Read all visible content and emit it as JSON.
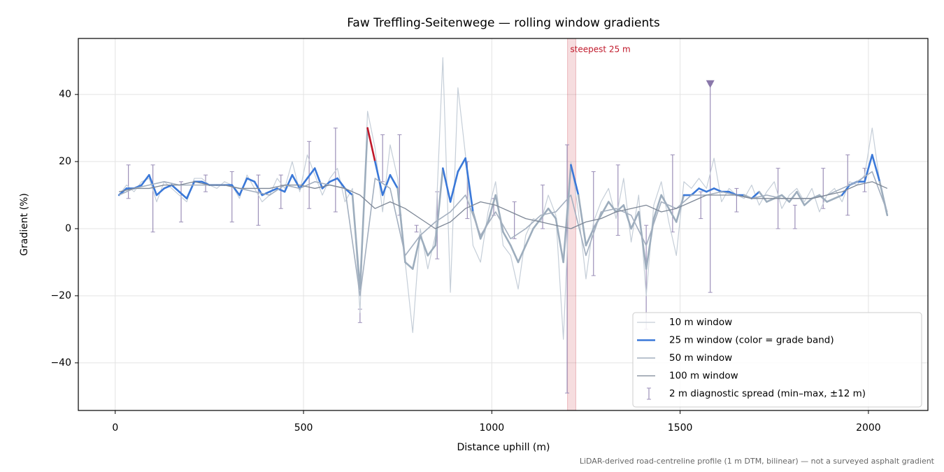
{
  "chart_data": {
    "type": "line",
    "title": "Faw Treffling-Seitenwege — rolling window gradients",
    "xlabel": "Distance uphill (m)",
    "ylabel": "Gradient (%)",
    "footnote": "LiDAR-derived road-centreline profile (1 m DTM, bilinear) — not a surveyed asphalt gradient",
    "xlim": [
      -98,
      2158
    ],
    "ylim": [
      -54.2,
      56.7
    ],
    "xticks": [
      0,
      500,
      1000,
      1500,
      2000
    ],
    "yticks": [
      {
        "value": -40,
        "label": "−40"
      },
      {
        "value": -20,
        "label": "−20"
      },
      0,
      20,
      40
    ],
    "grid": true,
    "legend": "lower right",
    "series": [
      {
        "name": "10 m window",
        "color": "#c5ced8",
        "linewidth": 1.2,
        "x": [
          10,
          30,
          50,
          70,
          90,
          110,
          130,
          150,
          170,
          190,
          210,
          230,
          250,
          270,
          290,
          310,
          330,
          350,
          370,
          390,
          410,
          430,
          450,
          470,
          490,
          510,
          530,
          550,
          570,
          590,
          610,
          630,
          650,
          670,
          690,
          710,
          730,
          750,
          770,
          790,
          810,
          830,
          850,
          870,
          890,
          910,
          930,
          950,
          970,
          990,
          1010,
          1030,
          1050,
          1070,
          1090,
          1110,
          1130,
          1150,
          1170,
          1190,
          1210,
          1230,
          1250,
          1270,
          1290,
          1310,
          1330,
          1350,
          1370,
          1390,
          1410,
          1430,
          1450,
          1470,
          1490,
          1510,
          1530,
          1550,
          1570,
          1590,
          1610,
          1630,
          1650,
          1670,
          1690,
          1710,
          1730,
          1750,
          1770,
          1790,
          1810,
          1830,
          1850,
          1870,
          1890,
          1910,
          1930,
          1950,
          1970,
          1990,
          2010,
          2030,
          2050
        ],
        "values": [
          10,
          13,
          11,
          14,
          15,
          8,
          14,
          12,
          10,
          8,
          15,
          15,
          13,
          12,
          14,
          13,
          9,
          16,
          12,
          8,
          10,
          15,
          12,
          20,
          11,
          22,
          16,
          10,
          15,
          18,
          8,
          12,
          -25,
          35,
          24,
          5,
          25,
          15,
          -10,
          -31,
          0,
          -12,
          -2,
          51,
          -19,
          42,
          22,
          -5,
          -10,
          5,
          14,
          -5,
          -8,
          -18,
          -2,
          3,
          2,
          10,
          4,
          -33,
          20,
          5,
          -15,
          2,
          8,
          12,
          3,
          15,
          -4,
          10,
          -20,
          7,
          14,
          2,
          -8,
          14,
          12,
          15,
          12,
          21,
          8,
          12,
          10,
          9,
          13,
          7,
          11,
          14,
          6,
          10,
          12,
          8,
          12,
          5,
          10,
          12,
          8,
          14,
          13,
          16,
          30,
          14,
          5
        ]
      },
      {
        "name": "25 m window (color = grade band)",
        "color": "#3a78d8",
        "linewidth": 2.6,
        "color_by": "grade_bands",
        "x": [
          10,
          30,
          50,
          70,
          90,
          110,
          130,
          150,
          170,
          190,
          210,
          230,
          250,
          270,
          290,
          310,
          330,
          350,
          370,
          390,
          410,
          430,
          450,
          470,
          490,
          510,
          530,
          550,
          570,
          590,
          610,
          630,
          650,
          670,
          690,
          710,
          730,
          750,
          770,
          790,
          810,
          830,
          850,
          870,
          890,
          910,
          930,
          950,
          970,
          990,
          1010,
          1030,
          1050,
          1070,
          1090,
          1110,
          1130,
          1150,
          1170,
          1190,
          1210,
          1230,
          1250,
          1270,
          1290,
          1310,
          1330,
          1350,
          1370,
          1390,
          1410,
          1430,
          1450,
          1470,
          1490,
          1510,
          1530,
          1550,
          1570,
          1590,
          1610,
          1630,
          1650,
          1670,
          1690,
          1710,
          1730,
          1750,
          1770,
          1790,
          1810,
          1830,
          1850,
          1870,
          1890,
          1910,
          1930,
          1950,
          1970,
          1990,
          2010,
          2030,
          2050
        ],
        "values": [
          10,
          12,
          12,
          13,
          16,
          10,
          12,
          13,
          11,
          9,
          14,
          14,
          13,
          13,
          13,
          13,
          10,
          15,
          14,
          10,
          11,
          12,
          11,
          16,
          12,
          15,
          18,
          12,
          14,
          15,
          12,
          10,
          -18,
          30,
          20,
          10,
          16,
          12,
          -10,
          -12,
          -2,
          -8,
          -5,
          18,
          8,
          17,
          21,
          5,
          -3,
          2,
          10,
          -1,
          -5,
          -10,
          -5,
          0,
          3,
          6,
          3,
          -10,
          19,
          10,
          -5,
          0,
          4,
          8,
          5,
          7,
          0,
          5,
          -12,
          3,
          10,
          6,
          2,
          10,
          10,
          12,
          11,
          12,
          11,
          11,
          10,
          10,
          9,
          11,
          8,
          9,
          10,
          8,
          11,
          7,
          9,
          10,
          8,
          9,
          10,
          13,
          14,
          14,
          22,
          14,
          4
        ]
      },
      {
        "name": "50 m window",
        "color": "#a3afbf",
        "linewidth": 1.6,
        "x": [
          10,
          50,
          90,
          130,
          170,
          210,
          250,
          290,
          330,
          370,
          410,
          450,
          490,
          530,
          570,
          610,
          650,
          690,
          730,
          770,
          810,
          850,
          890,
          930,
          970,
          1010,
          1050,
          1090,
          1130,
          1170,
          1210,
          1250,
          1290,
          1330,
          1370,
          1410,
          1450,
          1490,
          1530,
          1570,
          1610,
          1650,
          1690,
          1730,
          1770,
          1810,
          1850,
          1890,
          1930,
          1970,
          2010,
          2050
        ],
        "values": [
          10,
          12,
          13,
          14,
          13,
          13,
          13,
          13,
          12,
          11,
          10,
          13,
          12,
          14,
          13,
          12,
          -20,
          15,
          12,
          -8,
          -2,
          2,
          5,
          10,
          -2,
          5,
          -3,
          0,
          4,
          5,
          10,
          -8,
          5,
          6,
          4,
          -5,
          8,
          6,
          10,
          10,
          11,
          10,
          9,
          10,
          9,
          9,
          9,
          10,
          12,
          14,
          17,
          5
        ]
      },
      {
        "name": "100 m window",
        "color": "#7d8796",
        "linewidth": 1.3,
        "x": [
          10,
          50,
          90,
          130,
          170,
          210,
          250,
          290,
          330,
          370,
          410,
          450,
          490,
          530,
          570,
          610,
          650,
          690,
          730,
          770,
          810,
          850,
          890,
          930,
          970,
          1010,
          1050,
          1090,
          1130,
          1170,
          1210,
          1250,
          1290,
          1330,
          1370,
          1410,
          1450,
          1490,
          1530,
          1570,
          1610,
          1650,
          1690,
          1730,
          1770,
          1810,
          1850,
          1890,
          1930,
          1970,
          2010,
          2050
        ],
        "values": [
          11,
          12,
          12,
          13,
          13,
          14,
          13,
          13,
          12,
          12,
          12,
          13,
          13,
          12,
          13,
          12,
          10,
          6,
          8,
          6,
          3,
          0,
          2,
          6,
          8,
          7,
          5,
          3,
          2,
          1,
          0,
          2,
          3,
          5,
          6,
          7,
          5,
          6,
          8,
          10,
          10,
          10,
          9,
          9,
          9,
          9,
          9,
          10,
          11,
          13,
          14,
          12
        ]
      }
    ],
    "grade_bands": [
      {
        "below": 10,
        "color": "#9dadbd"
      },
      {
        "above": 20,
        "color": "#e08a00"
      },
      {
        "above": 25,
        "color": "#c0182a"
      }
    ],
    "errorbars": {
      "name": "2 m diagnostic spread (min–max, ±12 m)",
      "color": "#9b8fb8",
      "x": [
        35,
        100,
        175,
        240,
        310,
        380,
        440,
        515,
        585,
        650,
        710,
        755,
        800,
        855,
        935,
        1005,
        1060,
        1135,
        1200,
        1270,
        1335,
        1410,
        1480,
        1555,
        1580,
        1650,
        1760,
        1805,
        1880,
        1945,
        1990
      ],
      "min": [
        9,
        -1,
        2,
        11,
        2,
        1,
        6,
        6,
        5,
        -28,
        14,
        4,
        -1,
        -9,
        3,
        4,
        -3,
        0,
        -49,
        -14,
        -2,
        -30,
        -1,
        3,
        -19,
        5,
        0,
        0,
        6,
        4,
        11
      ],
      "max": [
        19,
        19,
        14,
        16,
        17,
        16,
        16,
        26,
        30,
        -24,
        28,
        28,
        1,
        11,
        20,
        9,
        8,
        13,
        25,
        17,
        19,
        1,
        22,
        11,
        43,
        12,
        18,
        7,
        18,
        22,
        18
      ]
    },
    "span": {
      "x": [
        1201,
        1223
      ],
      "label": "steepest 25 m",
      "color": "#c0182a"
    },
    "marker": {
      "x": 1580,
      "y": 43,
      "color": "#8a78aa"
    }
  }
}
